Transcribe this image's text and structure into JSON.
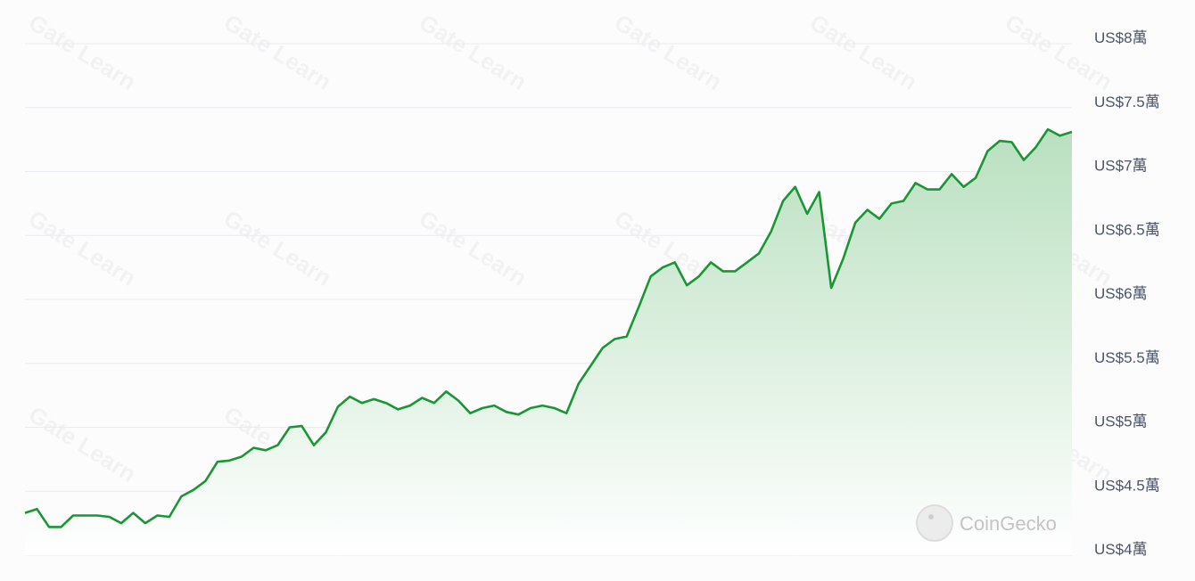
{
  "watermark": "Gate Learn",
  "brand_watermark": "CoinGecko",
  "colors": {
    "line": "#1a9635",
    "fill_top": "#b9e0bf",
    "fill_bottom": "#ffffff",
    "grid": "#e8ebf0",
    "label": "#4a5568"
  },
  "chart_data": {
    "type": "area",
    "title": "",
    "xlabel": "",
    "ylabel": "",
    "unit": "萬 USD",
    "ylim": [
      4,
      8
    ],
    "grid": true,
    "legend": "none",
    "y_ticks": [
      8,
      7.5,
      7,
      6.5,
      6,
      5.5,
      5,
      4.5,
      4
    ],
    "y_tick_labels": [
      "US$8萬",
      "US$7.5萬",
      "US$7萬",
      "US$6.5萬",
      "US$6萬",
      "US$5.5萬",
      "US$5萬",
      "US$4.5萬",
      "US$4萬"
    ],
    "values": [
      4.33,
      4.36,
      4.22,
      4.22,
      4.31,
      4.31,
      4.31,
      4.3,
      4.25,
      4.33,
      4.25,
      4.31,
      4.3,
      4.46,
      4.51,
      4.58,
      4.73,
      4.74,
      4.77,
      4.84,
      4.82,
      4.86,
      5.0,
      5.01,
      4.86,
      4.96,
      5.16,
      5.24,
      5.19,
      5.22,
      5.19,
      5.14,
      5.17,
      5.23,
      5.19,
      5.28,
      5.21,
      5.11,
      5.15,
      5.17,
      5.12,
      5.1,
      5.15,
      5.17,
      5.15,
      5.11,
      5.34,
      5.48,
      5.62,
      5.69,
      5.71,
      5.94,
      6.18,
      6.25,
      6.29,
      6.11,
      6.18,
      6.29,
      6.22,
      6.22,
      6.29,
      6.36,
      6.53,
      6.77,
      6.88,
      6.67,
      6.84,
      6.09,
      6.32,
      6.6,
      6.7,
      6.63,
      6.75,
      6.77,
      6.91,
      6.86,
      6.86,
      6.98,
      6.88,
      6.95,
      7.16,
      7.24,
      7.23,
      7.09,
      7.19,
      7.33,
      7.28,
      7.31
    ]
  }
}
